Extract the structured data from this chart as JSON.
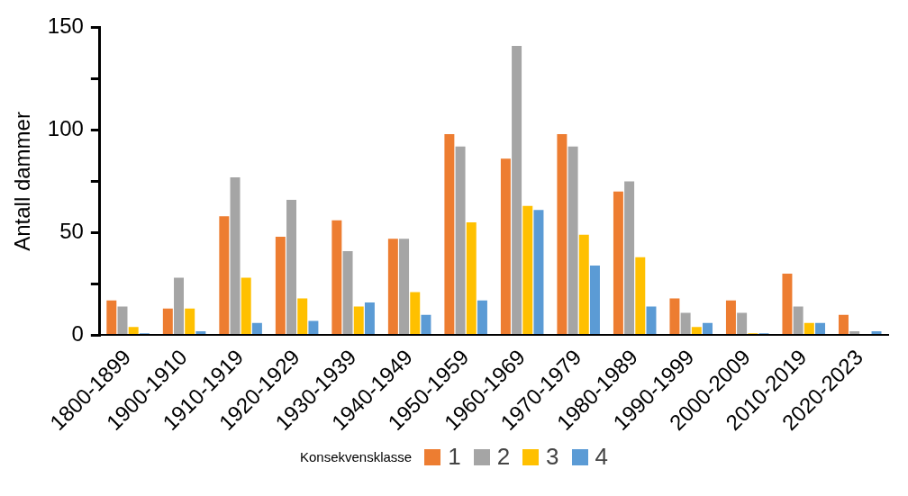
{
  "chart_data": {
    "type": "bar",
    "ylabel": "Antall dammer",
    "legend_title": "Konsekvensklasse",
    "legend": "bottom",
    "categories": [
      "1800-1899",
      "1900-1910",
      "1910-1919",
      "1920-1929",
      "1930-1939",
      "1940-1949",
      "1950-1959",
      "1960-1969",
      "1970-1979",
      "1980-1989",
      "1990-1999",
      "2000-2009",
      "2010-2019",
      "2020-2023"
    ],
    "series": [
      {
        "name": "1",
        "color": "#ed7d31",
        "values": [
          17,
          13,
          58,
          48,
          56,
          47,
          98,
          86,
          98,
          70,
          18,
          17,
          30,
          10
        ]
      },
      {
        "name": "2",
        "color": "#a5a5a5",
        "values": [
          14,
          28,
          77,
          66,
          41,
          47,
          92,
          141,
          92,
          75,
          11,
          11,
          14,
          2
        ]
      },
      {
        "name": "3",
        "color": "#ffc000",
        "values": [
          4,
          13,
          28,
          18,
          14,
          21,
          55,
          63,
          49,
          38,
          4,
          1,
          6,
          0
        ]
      },
      {
        "name": "4",
        "color": "#5b9bd5",
        "values": [
          1,
          2,
          6,
          7,
          16,
          10,
          17,
          61,
          34,
          14,
          6,
          1,
          6,
          2
        ]
      }
    ],
    "ylim": [
      0,
      150
    ],
    "yticks": [
      0,
      {
        "value": 25,
        "label": null
      },
      50,
      {
        "value": 75,
        "label": null
      },
      100,
      {
        "value": 125,
        "label": null
      },
      150
    ],
    "grid": false
  }
}
